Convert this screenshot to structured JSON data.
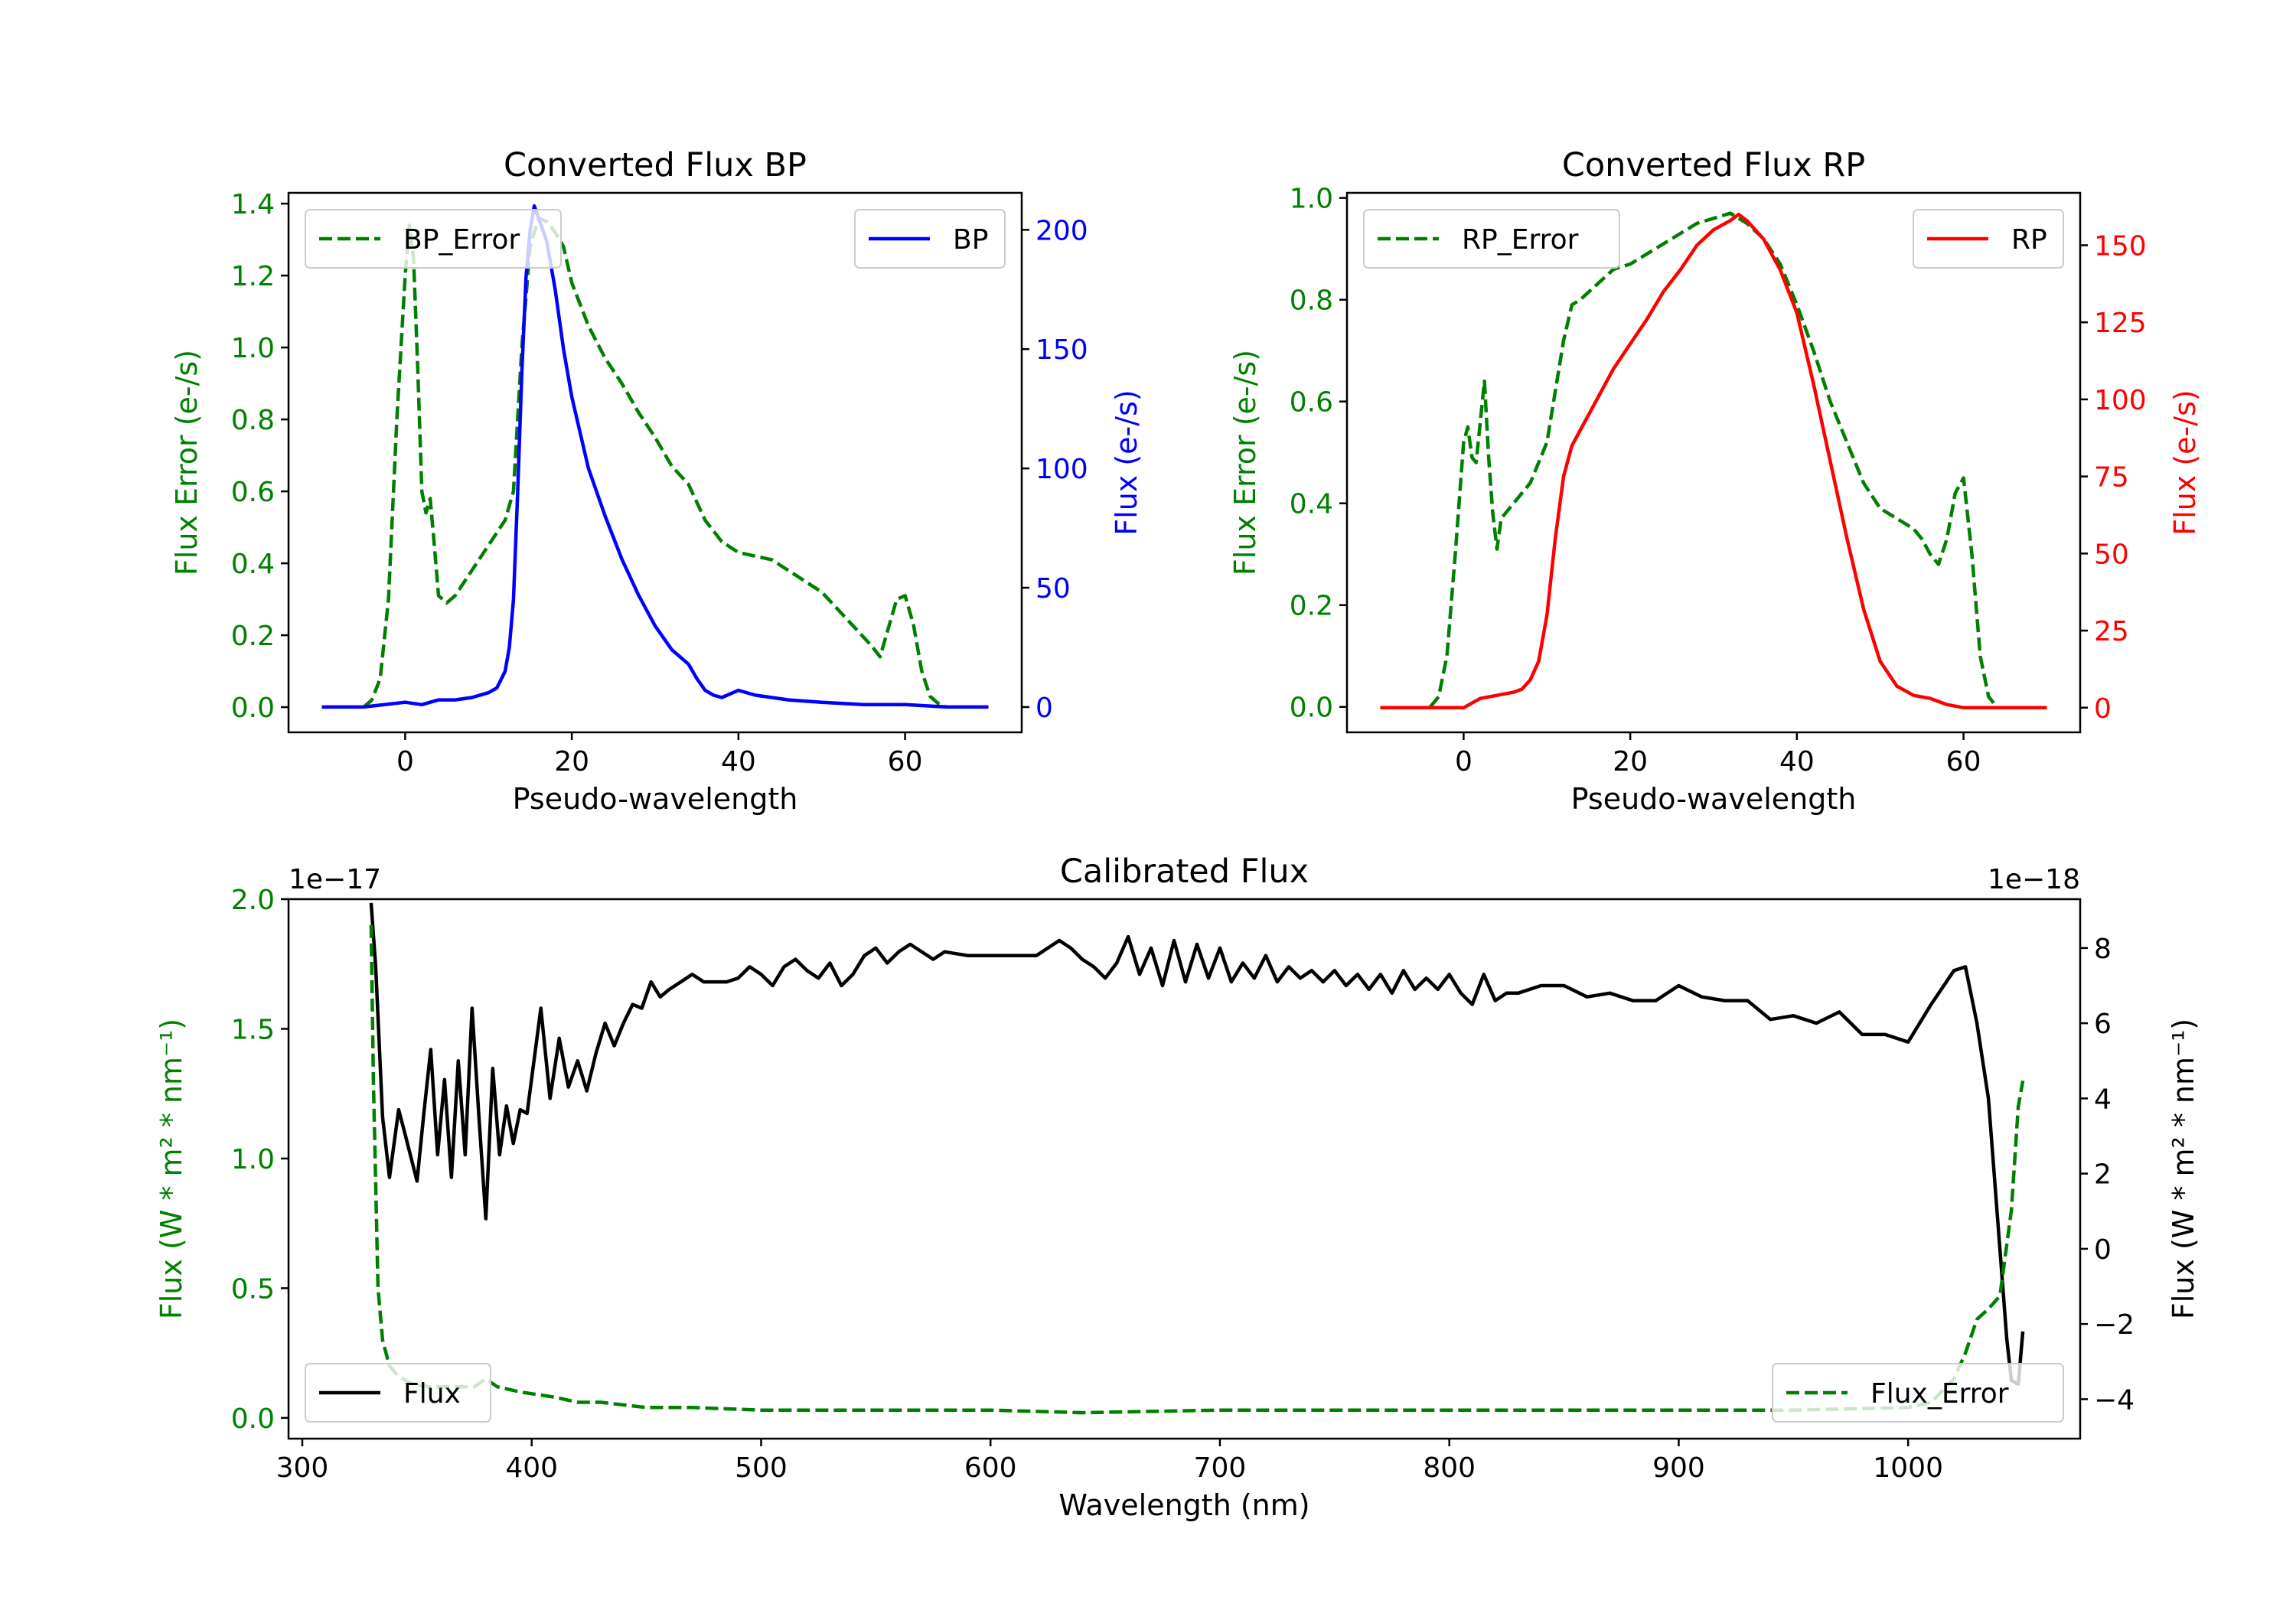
{
  "colors": {
    "error": "#008000",
    "bp": "#0000ff",
    "rp": "#ff0000",
    "flux": "#000000",
    "axis": "#000000"
  },
  "chart_data": [
    {
      "type": "line",
      "title": "Converted Flux BP",
      "xlabel": "Pseudo-wavelength",
      "ylabel_left": "Flux Error (e-/s)",
      "ylabel_right": "Flux (e-/s)",
      "xlim": [
        -14,
        74
      ],
      "ylim_left": [
        -0.07,
        1.43
      ],
      "ylim_right": [
        -10.6,
        215.5
      ],
      "xticks": [
        0,
        20,
        40,
        60
      ],
      "xtick_labels": [
        "0",
        "20",
        "40",
        "60"
      ],
      "yticks_left": [
        0.0,
        0.2,
        0.4,
        0.6,
        0.8,
        1.0,
        1.2,
        1.4
      ],
      "ytick_labels_left": [
        "0.0",
        "0.2",
        "0.4",
        "0.6",
        "0.8",
        "1.0",
        "1.2",
        "1.4"
      ],
      "yticks_right": [
        0,
        50,
        100,
        150,
        200
      ],
      "ytick_labels_right": [
        "0",
        "50",
        "100",
        "150",
        "200"
      ],
      "legend_left": {
        "label": "BP_Error",
        "position": "upper-left"
      },
      "legend_right": {
        "label": "BP",
        "position": "upper-right"
      },
      "series": [
        {
          "name": "BP_Error",
          "axis": "left",
          "style": "dashed",
          "color": "#008000",
          "x": [
            -5,
            -4,
            -3,
            -2,
            -1,
            0,
            0.5,
            1,
            1.5,
            2,
            2.5,
            3,
            3.5,
            4,
            5,
            6,
            8,
            10,
            12,
            13,
            14,
            15,
            16,
            17,
            18,
            19,
            20,
            22,
            24,
            26,
            28,
            30,
            32,
            34,
            36,
            38,
            40,
            42,
            44,
            46,
            48,
            50,
            52,
            54,
            56,
            57,
            58,
            59,
            60,
            61,
            62,
            63,
            64,
            65
          ],
          "y": [
            0.0,
            0.02,
            0.08,
            0.3,
            0.8,
            1.2,
            1.34,
            1.25,
            0.95,
            0.6,
            0.54,
            0.58,
            0.45,
            0.31,
            0.29,
            0.31,
            0.38,
            0.45,
            0.52,
            0.6,
            1.0,
            1.28,
            1.36,
            1.35,
            1.32,
            1.28,
            1.18,
            1.06,
            0.97,
            0.9,
            0.82,
            0.75,
            0.67,
            0.62,
            0.52,
            0.46,
            0.43,
            0.42,
            0.41,
            0.38,
            0.35,
            0.32,
            0.27,
            0.22,
            0.17,
            0.14,
            0.22,
            0.3,
            0.31,
            0.23,
            0.1,
            0.03,
            0.01,
            0.0
          ]
        },
        {
          "name": "BP",
          "axis": "right",
          "style": "solid",
          "color": "#0000ff",
          "x": [
            -10,
            -5,
            0,
            2,
            4,
            6,
            8,
            10,
            11,
            12,
            12.5,
            13,
            13.5,
            14,
            14.5,
            15,
            15.5,
            16,
            17,
            18,
            19,
            20,
            21,
            22,
            24,
            26,
            28,
            30,
            32,
            34,
            35,
            36,
            37,
            38,
            40,
            42,
            44,
            46,
            50,
            55,
            60,
            65,
            70
          ],
          "y": [
            0,
            0,
            2,
            1,
            3,
            3,
            4,
            6,
            8,
            15,
            25,
            45,
            90,
            140,
            180,
            200,
            210,
            205,
            195,
            175,
            150,
            130,
            115,
            100,
            80,
            62,
            47,
            34,
            24,
            18,
            12,
            7,
            5,
            4,
            7,
            5,
            4,
            3,
            2,
            1,
            1,
            0,
            0
          ]
        }
      ]
    },
    {
      "type": "line",
      "title": "Converted Flux RP",
      "xlabel": "Pseudo-wavelength",
      "ylabel_left": "Flux Error (e-/s)",
      "ylabel_right": "Flux (e-/s)",
      "xlim": [
        -14,
        74
      ],
      "ylim_left": [
        -0.05,
        1.01
      ],
      "ylim_right": [
        -8.0,
        167.0
      ],
      "xticks": [
        0,
        20,
        40,
        60
      ],
      "xtick_labels": [
        "0",
        "20",
        "40",
        "60"
      ],
      "yticks_left": [
        0.0,
        0.2,
        0.4,
        0.6,
        0.8,
        1.0
      ],
      "ytick_labels_left": [
        "0.0",
        "0.2",
        "0.4",
        "0.6",
        "0.8",
        "1.0"
      ],
      "yticks_right": [
        0,
        25,
        50,
        75,
        100,
        125,
        150
      ],
      "ytick_labels_right": [
        "0",
        "25",
        "50",
        "75",
        "100",
        "125",
        "150"
      ],
      "legend_left": {
        "label": "RP_Error",
        "position": "upper-left"
      },
      "legend_right": {
        "label": "RP",
        "position": "upper-right"
      },
      "series": [
        {
          "name": "RP_Error",
          "axis": "left",
          "style": "dashed",
          "color": "#008000",
          "x": [
            -4,
            -3,
            -2,
            -1,
            0,
            0.5,
            1,
            1.5,
            2,
            2.5,
            3,
            3.5,
            4,
            4.5,
            5,
            6,
            8,
            10,
            12,
            13,
            14,
            16,
            18,
            20,
            22,
            24,
            26,
            28,
            30,
            32,
            33,
            34,
            36,
            38,
            40,
            42,
            44,
            46,
            48,
            50,
            52,
            54,
            55,
            56,
            57,
            58,
            59,
            60,
            61,
            62,
            63,
            64
          ],
          "y": [
            0.0,
            0.02,
            0.1,
            0.3,
            0.52,
            0.55,
            0.49,
            0.48,
            0.56,
            0.64,
            0.49,
            0.38,
            0.31,
            0.37,
            0.38,
            0.4,
            0.44,
            0.52,
            0.72,
            0.79,
            0.8,
            0.83,
            0.86,
            0.87,
            0.89,
            0.91,
            0.93,
            0.95,
            0.96,
            0.97,
            0.96,
            0.95,
            0.92,
            0.87,
            0.79,
            0.7,
            0.6,
            0.52,
            0.44,
            0.39,
            0.37,
            0.35,
            0.33,
            0.3,
            0.28,
            0.33,
            0.42,
            0.45,
            0.3,
            0.1,
            0.02,
            0.0
          ]
        },
        {
          "name": "RP",
          "axis": "right",
          "style": "solid",
          "color": "#ff0000",
          "x": [
            -10,
            -5,
            0,
            2,
            4,
            6,
            7,
            8,
            9,
            10,
            11,
            12,
            13,
            14,
            16,
            18,
            20,
            22,
            24,
            26,
            28,
            30,
            32,
            33,
            34,
            35,
            36,
            38,
            40,
            42,
            44,
            46,
            48,
            50,
            52,
            54,
            56,
            58,
            60,
            65,
            70
          ],
          "y": [
            0,
            0,
            0,
            3,
            4,
            5,
            6,
            9,
            15,
            30,
            55,
            75,
            85,
            90,
            100,
            110,
            118,
            126,
            135,
            142,
            150,
            155,
            158,
            160,
            158,
            155,
            152,
            142,
            128,
            105,
            80,
            55,
            32,
            15,
            7,
            4,
            3,
            1,
            0,
            0,
            0
          ]
        }
      ]
    },
    {
      "type": "line",
      "title": "Calibrated Flux",
      "xlabel": "Wavelength (nm)",
      "ylabel_left": "Flux (W * m² * nm⁻¹)",
      "ylabel_right": "Flux (W * m² * nm⁻¹)",
      "offset_left": "1e−17",
      "offset_right": "1e−18",
      "xlim": [
        294,
        1075
      ],
      "ylim_left": [
        -0.08,
        2.0
      ],
      "ylim_right": [
        -5.05,
        9.3
      ],
      "xticks": [
        300,
        400,
        500,
        600,
        700,
        800,
        900,
        1000
      ],
      "xtick_labels": [
        "300",
        "400",
        "500",
        "600",
        "700",
        "800",
        "900",
        "1000"
      ],
      "yticks_left": [
        0.0,
        0.5,
        1.0,
        1.5,
        2.0
      ],
      "ytick_labels_left": [
        "0.0",
        "0.5",
        "1.0",
        "1.5",
        "2.0"
      ],
      "yticks_right": [
        -4,
        -2,
        0,
        2,
        4,
        6,
        8
      ],
      "ytick_labels_right": [
        "−4",
        "−2",
        "0",
        "2",
        "4",
        "6",
        "8"
      ],
      "legend_left": {
        "label": "Flux",
        "position": "lower-left"
      },
      "legend_right": {
        "label": "Flux_Error",
        "position": "lower-right"
      },
      "series": [
        {
          "name": "Flux",
          "axis": "right",
          "style": "solid",
          "color": "#000000",
          "x": [
            330,
            332,
            335,
            338,
            342,
            345,
            350,
            353,
            356,
            359,
            362,
            365,
            368,
            371,
            374,
            377,
            380,
            383,
            386,
            389,
            392,
            395,
            398,
            401,
            404,
            408,
            412,
            416,
            420,
            424,
            428,
            432,
            436,
            440,
            444,
            448,
            452,
            456,
            460,
            465,
            470,
            475,
            480,
            485,
            490,
            495,
            500,
            505,
            510,
            515,
            520,
            525,
            530,
            535,
            540,
            545,
            550,
            555,
            560,
            565,
            570,
            575,
            580,
            590,
            600,
            610,
            620,
            630,
            635,
            640,
            645,
            650,
            655,
            660,
            665,
            670,
            675,
            680,
            685,
            690,
            695,
            700,
            705,
            710,
            715,
            720,
            725,
            730,
            735,
            740,
            745,
            750,
            755,
            760,
            765,
            770,
            775,
            780,
            785,
            790,
            795,
            800,
            805,
            810,
            815,
            820,
            825,
            830,
            840,
            850,
            860,
            870,
            880,
            890,
            900,
            910,
            920,
            930,
            940,
            950,
            960,
            970,
            980,
            990,
            1000,
            1010,
            1020,
            1025,
            1030,
            1035,
            1040,
            1043,
            1045,
            1048,
            1050
          ],
          "y": [
            9.2,
            7.5,
            3.5,
            1.9,
            3.7,
            3.0,
            1.8,
            3.6,
            5.3,
            2.5,
            4.5,
            1.9,
            5.0,
            2.5,
            6.4,
            3.5,
            0.8,
            4.8,
            2.5,
            3.8,
            2.8,
            3.7,
            3.6,
            5.0,
            6.4,
            4.0,
            5.6,
            4.3,
            5.0,
            4.2,
            5.2,
            6.0,
            5.4,
            6.0,
            6.5,
            6.4,
            7.1,
            6.7,
            6.9,
            7.1,
            7.3,
            7.1,
            7.1,
            7.1,
            7.2,
            7.5,
            7.3,
            7.0,
            7.5,
            7.7,
            7.4,
            7.2,
            7.6,
            7.0,
            7.3,
            7.8,
            8.0,
            7.6,
            7.9,
            8.1,
            7.9,
            7.7,
            7.9,
            7.8,
            7.8,
            7.8,
            7.8,
            8.2,
            8.0,
            7.7,
            7.5,
            7.2,
            7.6,
            8.3,
            7.3,
            8.0,
            7.0,
            8.2,
            7.1,
            8.1,
            7.2,
            8.0,
            7.1,
            7.6,
            7.2,
            7.8,
            7.1,
            7.5,
            7.2,
            7.4,
            7.1,
            7.4,
            7.0,
            7.3,
            6.9,
            7.3,
            6.8,
            7.4,
            6.9,
            7.2,
            6.9,
            7.3,
            6.8,
            6.5,
            7.3,
            6.6,
            6.8,
            6.8,
            7.0,
            7.0,
            6.7,
            6.8,
            6.6,
            6.6,
            7.0,
            6.7,
            6.6,
            6.6,
            6.1,
            6.2,
            6.0,
            6.3,
            5.7,
            5.7,
            5.5,
            6.5,
            7.4,
            7.5,
            6.0,
            4.0,
            0.0,
            -2.4,
            -3.5,
            -3.6,
            -2.2
          ],
          "note": "Flux (right axis, units of 1e-18)"
        },
        {
          "name": "Flux_Error",
          "axis": "left",
          "style": "dashed",
          "color": "#008000",
          "x": [
            330,
            331,
            333,
            335,
            338,
            342,
            348,
            355,
            365,
            375,
            380,
            385,
            395,
            410,
            420,
            430,
            440,
            450,
            470,
            500,
            550,
            600,
            640,
            700,
            750,
            800,
            850,
            900,
            950,
            1000,
            1010,
            1020,
            1025,
            1030,
            1035,
            1040,
            1045,
            1048,
            1050
          ],
          "y": [
            1.9,
            1.3,
            0.5,
            0.3,
            0.2,
            0.16,
            0.13,
            0.12,
            0.12,
            0.12,
            0.15,
            0.12,
            0.1,
            0.08,
            0.06,
            0.06,
            0.05,
            0.04,
            0.04,
            0.03,
            0.03,
            0.03,
            0.02,
            0.03,
            0.03,
            0.03,
            0.03,
            0.03,
            0.03,
            0.04,
            0.06,
            0.15,
            0.25,
            0.38,
            0.42,
            0.47,
            0.8,
            1.2,
            1.3
          ],
          "note": "Flux_Error (left axis, units of 1e-17)"
        }
      ]
    }
  ]
}
